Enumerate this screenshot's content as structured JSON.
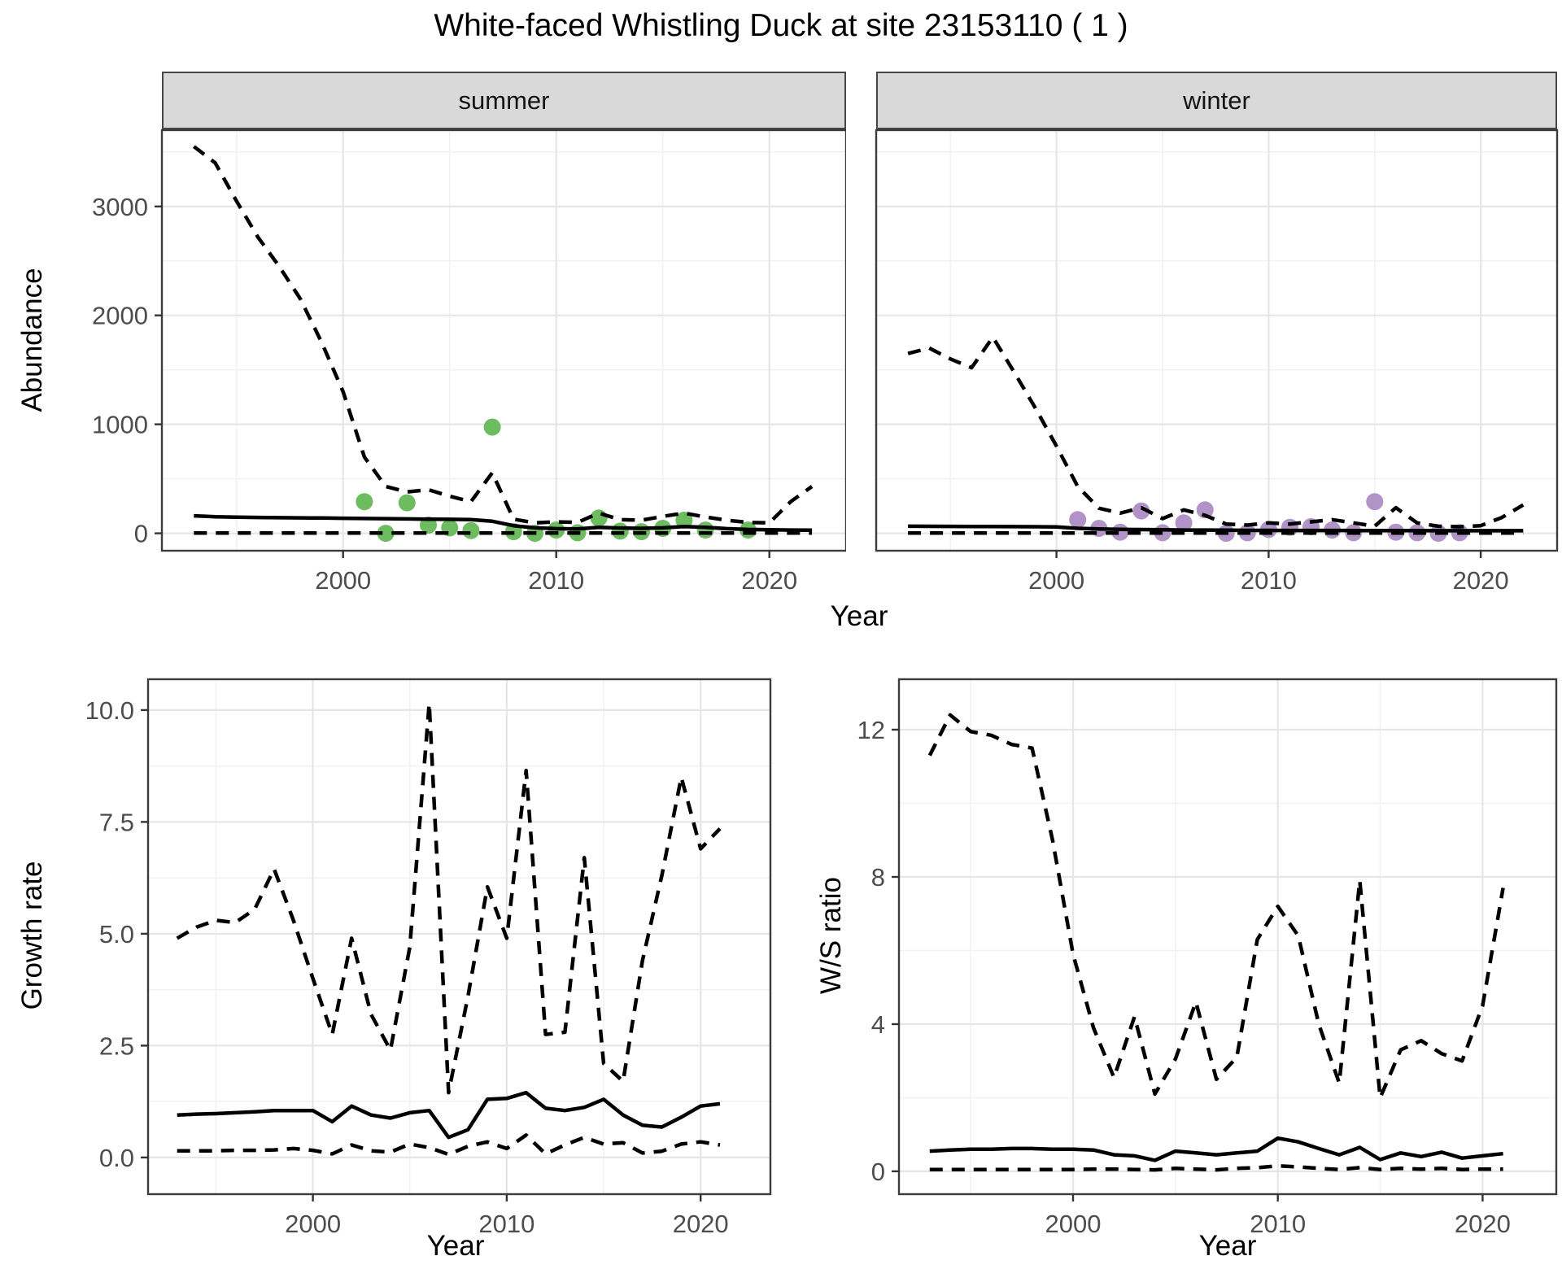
{
  "title": "White-faced Whistling Duck at site 23153110 ( 1 )",
  "x_axis_label": "Year",
  "colors": {
    "summer_point": "#6DBC5F",
    "winter_point": "#B193C8",
    "line": "#000000",
    "panel_border": "#3C3C3C",
    "grid_major": "#E6E6E6",
    "grid_minor": "#F2F2F2",
    "strip_bg": "#D9D9D9",
    "tick_text": "#4D4D4D"
  },
  "chart_data": [
    {
      "id": "abundance-summer",
      "type": "line",
      "facet_label": "summer",
      "ylabel": "Abundance",
      "xlabel": "Year",
      "x_domain": [
        1991.5,
        2023.6
      ],
      "y_domain": [
        -160,
        3700
      ],
      "x_ticks": [
        2000,
        2010,
        2020
      ],
      "x_tick_labels": [
        "2000",
        "2010",
        "2020"
      ],
      "x_minor_ticks": [
        1995,
        2005,
        2015
      ],
      "y_ticks": [
        0,
        1000,
        2000,
        3000
      ],
      "y_tick_labels": [
        "0",
        "1000",
        "2000",
        "3000"
      ],
      "y_minor_ticks": [
        500,
        1500,
        2500,
        3500
      ],
      "series": [
        {
          "name": "observations",
          "type": "points",
          "color": "#6DBC5F",
          "x": [
            2001,
            2002,
            2003,
            2004,
            2005,
            2006,
            2007,
            2008,
            2009,
            2010,
            2011,
            2012,
            2013,
            2014,
            2015,
            2016,
            2017,
            2019
          ],
          "y": [
            290,
            0,
            280,
            75,
            50,
            25,
            975,
            15,
            0,
            30,
            5,
            140,
            20,
            15,
            45,
            120,
            30,
            30
          ]
        },
        {
          "name": "upper_ci",
          "type": "dashed",
          "x": [
            1993,
            1994,
            1995,
            1996,
            1997,
            1998,
            1999,
            2000,
            2001,
            2002,
            2003,
            2004,
            2005,
            2006,
            2007,
            2008,
            2009,
            2010,
            2011,
            2012,
            2013,
            2014,
            2015,
            2016,
            2017,
            2018,
            2019,
            2020,
            2021,
            2022
          ],
          "y": [
            3550,
            3400,
            3050,
            2720,
            2450,
            2150,
            1750,
            1300,
            700,
            430,
            380,
            400,
            340,
            290,
            555,
            130,
            95,
            105,
            100,
            185,
            125,
            120,
            155,
            185,
            150,
            120,
            100,
            95,
            290,
            430
          ]
        },
        {
          "name": "median",
          "type": "solid",
          "x": [
            1993,
            1994,
            1995,
            1996,
            1997,
            1998,
            1999,
            2000,
            2001,
            2002,
            2003,
            2004,
            2005,
            2006,
            2007,
            2008,
            2009,
            2010,
            2011,
            2012,
            2013,
            2014,
            2015,
            2016,
            2017,
            2018,
            2019,
            2020,
            2021,
            2022
          ],
          "y": [
            160,
            152,
            148,
            145,
            143,
            142,
            140,
            138,
            136,
            134,
            132,
            130,
            128,
            125,
            110,
            70,
            50,
            42,
            40,
            55,
            48,
            45,
            50,
            62,
            55,
            42,
            35,
            32,
            30,
            28
          ]
        },
        {
          "name": "lower_ci",
          "type": "dashed",
          "x": [
            1993,
            1994,
            1995,
            1996,
            1997,
            1998,
            1999,
            2000,
            2001,
            2002,
            2003,
            2004,
            2005,
            2006,
            2007,
            2008,
            2009,
            2010,
            2011,
            2012,
            2013,
            2014,
            2015,
            2016,
            2017,
            2018,
            2019,
            2020,
            2021,
            2022
          ],
          "y": [
            2,
            2,
            2,
            2,
            2,
            2,
            2,
            2,
            2,
            2,
            2,
            2,
            2,
            2,
            2,
            2,
            2,
            2,
            2,
            2,
            2,
            2,
            2,
            2,
            2,
            2,
            2,
            2,
            2,
            2
          ]
        }
      ]
    },
    {
      "id": "abundance-winter",
      "type": "line",
      "facet_label": "winter",
      "ylabel": null,
      "xlabel": "Year",
      "x_domain": [
        1991.5,
        2023.6
      ],
      "y_domain": [
        -160,
        3700
      ],
      "x_ticks": [
        2000,
        2010,
        2020
      ],
      "x_tick_labels": [
        "2000",
        "2010",
        "2020"
      ],
      "x_minor_ticks": [
        1995,
        2005,
        2015
      ],
      "y_ticks": [
        0,
        1000,
        2000,
        3000
      ],
      "y_tick_labels": [
        "0",
        "1000",
        "2000",
        "3000"
      ],
      "y_minor_ticks": [
        500,
        1500,
        2500,
        3500
      ],
      "series": [
        {
          "name": "observations",
          "type": "points",
          "color": "#B193C8",
          "x": [
            2001,
            2002,
            2003,
            2004,
            2005,
            2006,
            2007,
            2008,
            2009,
            2010,
            2011,
            2012,
            2013,
            2014,
            2015,
            2016,
            2017,
            2018,
            2019
          ],
          "y": [
            125,
            45,
            10,
            205,
            5,
            95,
            215,
            0,
            5,
            35,
            55,
            60,
            30,
            5,
            290,
            10,
            5,
            0,
            5
          ]
        },
        {
          "name": "upper_ci",
          "type": "dashed",
          "x": [
            1993,
            1994,
            1995,
            1996,
            1997,
            1998,
            1999,
            2000,
            2001,
            2002,
            2003,
            2004,
            2005,
            2006,
            2007,
            2008,
            2009,
            2010,
            2011,
            2012,
            2013,
            2014,
            2015,
            2016,
            2017,
            2018,
            2019,
            2020,
            2021,
            2022
          ],
          "y": [
            1650,
            1700,
            1600,
            1520,
            1800,
            1480,
            1150,
            800,
            430,
            230,
            185,
            235,
            135,
            215,
            165,
            85,
            75,
            95,
            85,
            105,
            125,
            95,
            65,
            235,
            95,
            65,
            60,
            70,
            145,
            260
          ]
        },
        {
          "name": "median",
          "type": "solid",
          "x": [
            1993,
            1994,
            1995,
            1996,
            1997,
            1998,
            1999,
            2000,
            2001,
            2002,
            2003,
            2004,
            2005,
            2006,
            2007,
            2008,
            2009,
            2010,
            2011,
            2012,
            2013,
            2014,
            2015,
            2016,
            2017,
            2018,
            2019,
            2020,
            2021,
            2022
          ],
          "y": [
            65,
            64,
            63,
            62,
            62,
            61,
            60,
            58,
            45,
            40,
            36,
            34,
            32,
            30,
            30,
            28,
            27,
            27,
            26,
            26,
            26,
            25,
            25,
            25,
            25,
            24,
            24,
            24,
            24,
            24
          ]
        },
        {
          "name": "lower_ci",
          "type": "dashed",
          "x": [
            1993,
            1994,
            1995,
            1996,
            1997,
            1998,
            1999,
            2000,
            2001,
            2002,
            2003,
            2004,
            2005,
            2006,
            2007,
            2008,
            2009,
            2010,
            2011,
            2012,
            2013,
            2014,
            2015,
            2016,
            2017,
            2018,
            2019,
            2020,
            2021,
            2022
          ],
          "y": [
            2,
            2,
            2,
            2,
            2,
            2,
            2,
            2,
            2,
            2,
            2,
            2,
            2,
            2,
            2,
            2,
            2,
            2,
            2,
            2,
            2,
            2,
            2,
            2,
            2,
            2,
            2,
            2,
            2,
            2
          ]
        }
      ]
    },
    {
      "id": "growth-rate",
      "type": "line",
      "facet_label": null,
      "ylabel": "Growth rate",
      "xlabel": "Year",
      "x_domain": [
        1991.5,
        2023.6
      ],
      "y_domain": [
        -0.82,
        10.69
      ],
      "x_ticks": [
        2000,
        2010,
        2020
      ],
      "x_tick_labels": [
        "2000",
        "2010",
        "2020"
      ],
      "x_minor_ticks": [
        1995,
        2005,
        2015
      ],
      "y_ticks": [
        0,
        2.5,
        5,
        7.5,
        10
      ],
      "y_tick_labels": [
        "0.0",
        "2.5",
        "5.0",
        "7.5",
        "10.0"
      ],
      "y_minor_ticks": [
        1.25,
        3.75,
        6.25,
        8.75
      ],
      "series": [
        {
          "name": "upper_ci",
          "type": "dashed",
          "x": [
            1993,
            1994,
            1995,
            1996,
            1997,
            1998,
            1999,
            2000,
            2001,
            2002,
            2003,
            2004,
            2005,
            2006,
            2007,
            2008,
            2009,
            2010,
            2011,
            2012,
            2013,
            2014,
            2015,
            2016,
            2017,
            2018,
            2019,
            2020,
            2021
          ],
          "y": [
            4.9,
            5.15,
            5.3,
            5.25,
            5.55,
            6.45,
            5.3,
            4.0,
            2.75,
            4.9,
            3.2,
            2.4,
            4.7,
            10.15,
            1.45,
            3.6,
            6.05,
            4.9,
            8.65,
            2.75,
            2.8,
            6.7,
            2.1,
            1.7,
            4.4,
            6.3,
            8.5,
            6.9,
            7.35
          ]
        },
        {
          "name": "median",
          "type": "solid",
          "x": [
            1993,
            1994,
            1995,
            1996,
            1997,
            1998,
            1999,
            2000,
            2001,
            2002,
            2003,
            2004,
            2005,
            2006,
            2007,
            2008,
            2009,
            2010,
            2011,
            2012,
            2013,
            2014,
            2015,
            2016,
            2017,
            2018,
            2019,
            2020,
            2021
          ],
          "y": [
            0.95,
            0.97,
            0.98,
            1.0,
            1.02,
            1.05,
            1.05,
            1.05,
            0.8,
            1.15,
            0.95,
            0.88,
            1.0,
            1.05,
            0.45,
            0.62,
            1.3,
            1.32,
            1.45,
            1.1,
            1.05,
            1.12,
            1.3,
            0.95,
            0.72,
            0.68,
            0.9,
            1.15,
            1.2
          ]
        },
        {
          "name": "lower_ci",
          "type": "dashed",
          "x": [
            1993,
            1994,
            1995,
            1996,
            1997,
            1998,
            1999,
            2000,
            2001,
            2002,
            2003,
            2004,
            2005,
            2006,
            2007,
            2008,
            2009,
            2010,
            2011,
            2012,
            2013,
            2014,
            2015,
            2016,
            2017,
            2018,
            2019,
            2020,
            2021
          ],
          "y": [
            0.15,
            0.15,
            0.15,
            0.16,
            0.16,
            0.17,
            0.2,
            0.16,
            0.08,
            0.28,
            0.15,
            0.12,
            0.3,
            0.22,
            0.07,
            0.25,
            0.35,
            0.2,
            0.5,
            0.08,
            0.28,
            0.45,
            0.3,
            0.33,
            0.1,
            0.14,
            0.3,
            0.35,
            0.28
          ]
        }
      ]
    },
    {
      "id": "ws-ratio",
      "type": "line",
      "facet_label": null,
      "ylabel": "W/S ratio",
      "xlabel": "Year",
      "x_domain": [
        1991.5,
        2023.6
      ],
      "y_domain": [
        -0.62,
        13.37
      ],
      "x_ticks": [
        2000,
        2010,
        2020
      ],
      "x_tick_labels": [
        "2000",
        "2010",
        "2020"
      ],
      "x_minor_ticks": [
        1995,
        2005,
        2015
      ],
      "y_ticks": [
        0,
        4,
        8,
        12
      ],
      "y_tick_labels": [
        "0",
        "4",
        "8",
        "12"
      ],
      "y_minor_ticks": [
        2,
        6,
        10
      ],
      "series": [
        {
          "name": "upper_ci",
          "type": "dashed",
          "x": [
            1993,
            1994,
            1995,
            1996,
            1997,
            1998,
            1999,
            2000,
            2001,
            2002,
            2003,
            2004,
            2005,
            2006,
            2007,
            2008,
            2009,
            2010,
            2011,
            2012,
            2013,
            2014,
            2015,
            2016,
            2017,
            2018,
            2019,
            2020,
            2021
          ],
          "y": [
            11.3,
            12.4,
            11.95,
            11.85,
            11.6,
            11.5,
            9.0,
            5.9,
            3.9,
            2.55,
            4.2,
            2.1,
            3.05,
            4.6,
            2.5,
            3.1,
            6.3,
            7.2,
            6.4,
            4.0,
            2.4,
            7.9,
            2.0,
            3.3,
            3.55,
            3.2,
            3.0,
            4.5,
            7.7
          ]
        },
        {
          "name": "median",
          "type": "solid",
          "x": [
            1993,
            1994,
            1995,
            1996,
            1997,
            1998,
            1999,
            2000,
            2001,
            2002,
            2003,
            2004,
            2005,
            2006,
            2007,
            2008,
            2009,
            2010,
            2011,
            2012,
            2013,
            2014,
            2015,
            2016,
            2017,
            2018,
            2019,
            2020,
            2021
          ],
          "y": [
            0.55,
            0.58,
            0.6,
            0.6,
            0.62,
            0.62,
            0.6,
            0.6,
            0.58,
            0.45,
            0.42,
            0.3,
            0.55,
            0.5,
            0.45,
            0.5,
            0.55,
            0.9,
            0.8,
            0.62,
            0.45,
            0.65,
            0.32,
            0.5,
            0.4,
            0.52,
            0.36,
            0.42,
            0.48
          ]
        },
        {
          "name": "lower_ci",
          "type": "dashed",
          "x": [
            1993,
            1994,
            1995,
            1996,
            1997,
            1998,
            1999,
            2000,
            2001,
            2002,
            2003,
            2004,
            2005,
            2006,
            2007,
            2008,
            2009,
            2010,
            2011,
            2012,
            2013,
            2014,
            2015,
            2016,
            2017,
            2018,
            2019,
            2020,
            2021
          ],
          "y": [
            0.05,
            0.05,
            0.05,
            0.05,
            0.05,
            0.05,
            0.05,
            0.05,
            0.06,
            0.06,
            0.05,
            0.04,
            0.08,
            0.06,
            0.04,
            0.08,
            0.1,
            0.15,
            0.12,
            0.08,
            0.05,
            0.1,
            0.05,
            0.08,
            0.06,
            0.08,
            0.05,
            0.06,
            0.06
          ]
        }
      ]
    }
  ]
}
